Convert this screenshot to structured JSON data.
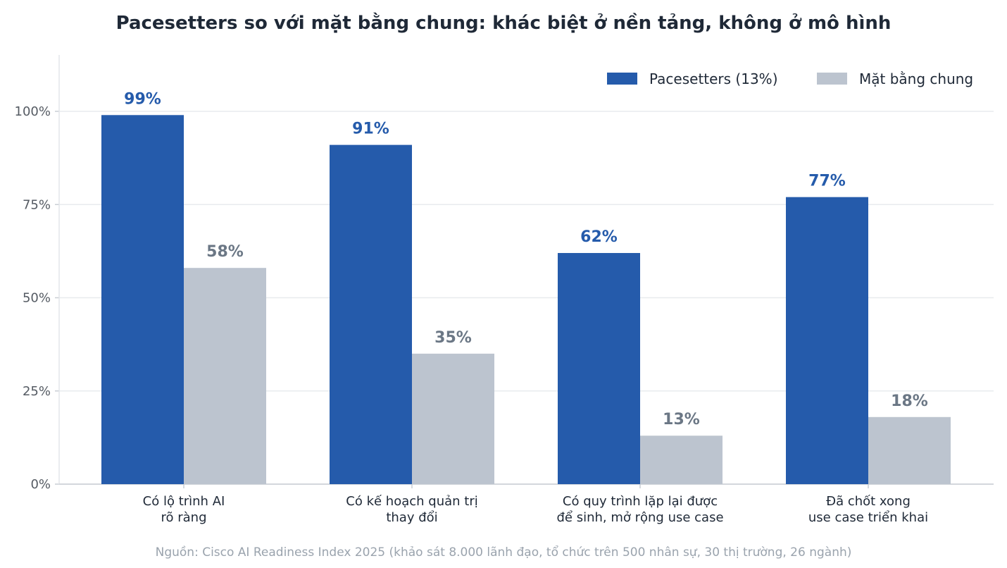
{
  "chart_data": {
    "type": "bar",
    "title": "Pacesetters so với mặt bằng chung: khác biệt ở nền tảng, không ở mô hình",
    "categories": [
      [
        "Có lộ trình AI",
        "rõ ràng"
      ],
      [
        "Có kế hoạch quản trị",
        "thay đổi"
      ],
      [
        "Có quy trình lặp lại được",
        "để sinh, mở rộng use case"
      ],
      [
        "Đã chốt xong",
        "use case triển khai"
      ]
    ],
    "series": [
      {
        "name": "Pacesetters (13%)",
        "color": "#255bab",
        "label_color": "#255bab",
        "values": [
          99,
          91,
          62,
          77
        ],
        "labels": [
          "99%",
          "91%",
          "62%",
          "77%"
        ]
      },
      {
        "name": "Mặt bằng chung",
        "color": "#bcc4cf",
        "label_color": "#6b7785",
        "values": [
          58,
          35,
          13,
          18
        ],
        "labels": [
          "58%",
          "35%",
          "13%",
          "18%"
        ]
      }
    ],
    "y_ticks": [
      0,
      25,
      50,
      75,
      100
    ],
    "y_tick_labels": [
      "0%",
      "25%",
      "50%",
      "75%",
      "100%"
    ],
    "ylim": [
      0,
      115
    ],
    "grid": true,
    "legend_position": "top-right",
    "source": "Nguồn: Cisco AI Readiness Index 2025 (khảo sát 8.000 lãnh đạo, tổ chức trên 500 nhân sự, 30 thị trường, 26 ngành)"
  }
}
